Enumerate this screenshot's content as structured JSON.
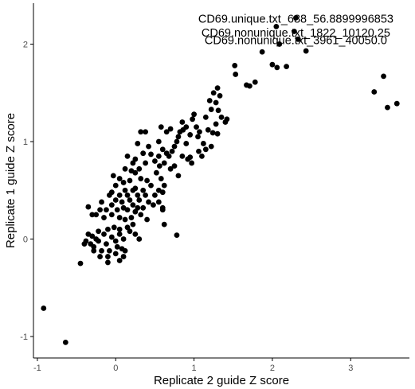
{
  "chart_data": {
    "type": "scatter",
    "xlabel": "Replicate 2 guide Z score",
    "ylabel": "Replicate 1 guide Z score",
    "xlim": [
      -1.05,
      3.75
    ],
    "ylim": [
      -1.22,
      2.42
    ],
    "x_ticks": [
      -1,
      0,
      1,
      2,
      3
    ],
    "y_ticks": [
      -1,
      0,
      1,
      2
    ],
    "grid": false,
    "point_color": "#000000",
    "labels": [
      {
        "text": "CD69.unique.txt_688_56.8899996853",
        "x": 2.3,
        "y": 2.26,
        "anchor_x": 2.3,
        "anchor_y": 2.27
      },
      {
        "text": "CD69.nonunique.txt_1822_10120.25",
        "x": 2.3,
        "y": 2.12,
        "anchor_x": 2.28,
        "anchor_y": 2.13
      },
      {
        "text": "CD69.nonunique.txt_3961_40050.0",
        "x": 2.3,
        "y": 2.04,
        "anchor_x": 2.33,
        "anchor_y": 2.05
      }
    ],
    "points": [
      {
        "x": 2.3,
        "y": 2.27
      },
      {
        "x": 2.28,
        "y": 2.13
      },
      {
        "x": 2.33,
        "y": 2.05
      },
      {
        "x": 2.05,
        "y": 2.18
      },
      {
        "x": 2.09,
        "y": 2.0
      },
      {
        "x": 2.43,
        "y": 1.93
      },
      {
        "x": 1.87,
        "y": 1.92
      },
      {
        "x": 2.0,
        "y": 1.79
      },
      {
        "x": 2.06,
        "y": 1.76
      },
      {
        "x": 2.18,
        "y": 1.77
      },
      {
        "x": 1.52,
        "y": 1.78
      },
      {
        "x": 1.53,
        "y": 1.69
      },
      {
        "x": 1.67,
        "y": 1.58
      },
      {
        "x": 1.71,
        "y": 1.57
      },
      {
        "x": 1.78,
        "y": 1.61
      },
      {
        "x": 3.42,
        "y": 1.67
      },
      {
        "x": 3.3,
        "y": 1.51
      },
      {
        "x": 3.47,
        "y": 1.35
      },
      {
        "x": 3.59,
        "y": 1.39
      },
      {
        "x": 1.3,
        "y": 1.55
      },
      {
        "x": 1.25,
        "y": 1.5
      },
      {
        "x": 1.33,
        "y": 1.47
      },
      {
        "x": 1.28,
        "y": 1.4
      },
      {
        "x": 1.2,
        "y": 1.42
      },
      {
        "x": 1.22,
        "y": 1.33
      },
      {
        "x": 1.31,
        "y": 1.32
      },
      {
        "x": 1.15,
        "y": 1.25
      },
      {
        "x": 1.42,
        "y": 1.23
      },
      {
        "x": 1.4,
        "y": 1.2
      },
      {
        "x": 1.35,
        "y": 1.25
      },
      {
        "x": 1.28,
        "y": 1.18
      },
      {
        "x": 1.18,
        "y": 1.12
      },
      {
        "x": 1.24,
        "y": 1.09
      },
      {
        "x": 1.3,
        "y": 1.08
      },
      {
        "x": 1.0,
        "y": 1.28
      },
      {
        "x": 0.98,
        "y": 1.23
      },
      {
        "x": 0.85,
        "y": 1.2
      },
      {
        "x": 0.9,
        "y": 1.15
      },
      {
        "x": 1.03,
        "y": 1.15
      },
      {
        "x": 1.07,
        "y": 1.1
      },
      {
        "x": 1.05,
        "y": 1.05
      },
      {
        "x": 0.95,
        "y": 1.07
      },
      {
        "x": 0.86,
        "y": 1.12
      },
      {
        "x": 0.8,
        "y": 1.05
      },
      {
        "x": 0.82,
        "y": 1.1
      },
      {
        "x": 0.7,
        "y": 1.13
      },
      {
        "x": 0.65,
        "y": 1.1
      },
      {
        "x": 0.58,
        "y": 1.15
      },
      {
        "x": 0.78,
        "y": 1.0
      },
      {
        "x": 0.9,
        "y": 0.98
      },
      {
        "x": 1.12,
        "y": 0.98
      },
      {
        "x": 1.22,
        "y": 0.95
      },
      {
        "x": 1.15,
        "y": 0.92
      },
      {
        "x": 0.75,
        "y": 0.95
      },
      {
        "x": 0.72,
        "y": 0.9
      },
      {
        "x": 0.85,
        "y": 0.85
      },
      {
        "x": 1.1,
        "y": 0.85
      },
      {
        "x": 1.06,
        "y": 0.9
      },
      {
        "x": 0.95,
        "y": 0.84
      },
      {
        "x": 0.92,
        "y": 0.82
      },
      {
        "x": 0.97,
        "y": 0.78
      },
      {
        "x": 0.32,
        "y": 1.1
      },
      {
        "x": 0.38,
        "y": 1.1
      },
      {
        "x": 0.28,
        "y": 0.98
      },
      {
        "x": 0.42,
        "y": 0.95
      },
      {
        "x": 0.55,
        "y": 1.0
      },
      {
        "x": 0.6,
        "y": 0.92
      },
      {
        "x": 0.65,
        "y": 0.88
      },
      {
        "x": 0.68,
        "y": 0.85
      },
      {
        "x": 0.55,
        "y": 0.85
      },
      {
        "x": 0.45,
        "y": 0.87
      },
      {
        "x": 0.35,
        "y": 0.88
      },
      {
        "x": 0.25,
        "y": 0.82
      },
      {
        "x": 0.15,
        "y": 0.85
      },
      {
        "x": 0.22,
        "y": 0.78
      },
      {
        "x": 0.3,
        "y": 0.72
      },
      {
        "x": 0.38,
        "y": 0.78
      },
      {
        "x": 0.5,
        "y": 0.8
      },
      {
        "x": 0.56,
        "y": 0.75
      },
      {
        "x": 0.62,
        "y": 0.78
      },
      {
        "x": 0.52,
        "y": 0.68
      },
      {
        "x": 0.58,
        "y": 0.62
      },
      {
        "x": 0.7,
        "y": 0.72
      },
      {
        "x": 0.75,
        "y": 0.75
      },
      {
        "x": 0.8,
        "y": 0.65
      },
      {
        "x": 0.62,
        "y": 0.55
      },
      {
        "x": 0.55,
        "y": 0.5
      },
      {
        "x": 0.5,
        "y": 0.45
      },
      {
        "x": 0.6,
        "y": 0.48
      },
      {
        "x": 0.45,
        "y": 0.55
      },
      {
        "x": 0.4,
        "y": 0.6
      },
      {
        "x": 0.35,
        "y": 0.5
      },
      {
        "x": 0.32,
        "y": 0.62
      },
      {
        "x": 0.25,
        "y": 0.68
      },
      {
        "x": 0.2,
        "y": 0.7
      },
      {
        "x": 0.12,
        "y": 0.72
      },
      {
        "x": 0.05,
        "y": 0.62
      },
      {
        "x": 0.0,
        "y": 0.55
      },
      {
        "x": -0.03,
        "y": 0.65
      },
      {
        "x": 0.1,
        "y": 0.58
      },
      {
        "x": 0.18,
        "y": 0.6
      },
      {
        "x": 0.25,
        "y": 0.52
      },
      {
        "x": 0.28,
        "y": 0.45
      },
      {
        "x": 0.22,
        "y": 0.5
      },
      {
        "x": 0.3,
        "y": 0.4
      },
      {
        "x": 0.38,
        "y": 0.45
      },
      {
        "x": 0.42,
        "y": 0.38
      },
      {
        "x": 0.35,
        "y": 0.32
      },
      {
        "x": 0.48,
        "y": 0.35
      },
      {
        "x": 0.55,
        "y": 0.38
      },
      {
        "x": 0.6,
        "y": 0.32
      },
      {
        "x": 0.15,
        "y": 0.45
      },
      {
        "x": 0.12,
        "y": 0.5
      },
      {
        "x": 0.05,
        "y": 0.45
      },
      {
        "x": -0.05,
        "y": 0.48
      },
      {
        "x": -0.08,
        "y": 0.45
      },
      {
        "x": 0.0,
        "y": 0.4
      },
      {
        "x": 0.08,
        "y": 0.38
      },
      {
        "x": 0.18,
        "y": 0.4
      },
      {
        "x": 0.22,
        "y": 0.35
      },
      {
        "x": 0.28,
        "y": 0.32
      },
      {
        "x": 0.25,
        "y": 0.28
      },
      {
        "x": 0.15,
        "y": 0.3
      },
      {
        "x": 0.1,
        "y": 0.32
      },
      {
        "x": 0.02,
        "y": 0.3
      },
      {
        "x": -0.05,
        "y": 0.35
      },
      {
        "x": -0.12,
        "y": 0.3
      },
      {
        "x": -0.18,
        "y": 0.38
      },
      {
        "x": -0.2,
        "y": 0.3
      },
      {
        "x": -0.25,
        "y": 0.25
      },
      {
        "x": -0.3,
        "y": 0.25
      },
      {
        "x": -0.35,
        "y": 0.33
      },
      {
        "x": -0.15,
        "y": 0.22
      },
      {
        "x": -0.05,
        "y": 0.25
      },
      {
        "x": 0.05,
        "y": 0.22
      },
      {
        "x": 0.12,
        "y": 0.2
      },
      {
        "x": 0.2,
        "y": 0.22
      },
      {
        "x": 0.32,
        "y": 0.25
      },
      {
        "x": 0.4,
        "y": 0.2
      },
      {
        "x": 0.6,
        "y": 0.3
      },
      {
        "x": 0.62,
        "y": 0.15
      },
      {
        "x": 0.22,
        "y": 0.15
      },
      {
        "x": 0.15,
        "y": 0.12
      },
      {
        "x": 0.05,
        "y": 0.1
      },
      {
        "x": -0.02,
        "y": 0.12
      },
      {
        "x": -0.1,
        "y": 0.1
      },
      {
        "x": -0.15,
        "y": 0.05
      },
      {
        "x": -0.22,
        "y": 0.08
      },
      {
        "x": -0.25,
        "y": 0.0
      },
      {
        "x": -0.3,
        "y": 0.03
      },
      {
        "x": -0.35,
        "y": 0.05
      },
      {
        "x": -0.38,
        "y": -0.02
      },
      {
        "x": -0.4,
        "y": -0.05
      },
      {
        "x": -0.32,
        "y": -0.05
      },
      {
        "x": -0.28,
        "y": -0.08
      },
      {
        "x": -0.22,
        "y": -0.02
      },
      {
        "x": -0.18,
        "y": -0.12
      },
      {
        "x": -0.12,
        "y": -0.05
      },
      {
        "x": -0.05,
        "y": 0.02
      },
      {
        "x": 0.0,
        "y": -0.02
      },
      {
        "x": 0.05,
        "y": 0.05
      },
      {
        "x": 0.1,
        "y": 0.0
      },
      {
        "x": 0.18,
        "y": 0.08
      },
      {
        "x": 0.25,
        "y": 0.05
      },
      {
        "x": 0.3,
        "y": 0.0
      },
      {
        "x": 0.02,
        "y": -0.08
      },
      {
        "x": 0.08,
        "y": -0.1
      },
      {
        "x": 0.12,
        "y": -0.12
      },
      {
        "x": -0.08,
        "y": -0.12
      },
      {
        "x": -0.28,
        "y": -0.12
      },
      {
        "x": -0.2,
        "y": -0.18
      },
      {
        "x": -0.1,
        "y": -0.18
      },
      {
        "x": 0.0,
        "y": -0.15
      },
      {
        "x": 0.1,
        "y": -0.18
      },
      {
        "x": -0.1,
        "y": -0.24
      },
      {
        "x": -0.45,
        "y": -0.25
      },
      {
        "x": 0.05,
        "y": -0.22
      },
      {
        "x": 0.78,
        "y": 0.04
      },
      {
        "x": -0.92,
        "y": -0.71
      },
      {
        "x": -0.64,
        "y": -1.06
      }
    ]
  }
}
